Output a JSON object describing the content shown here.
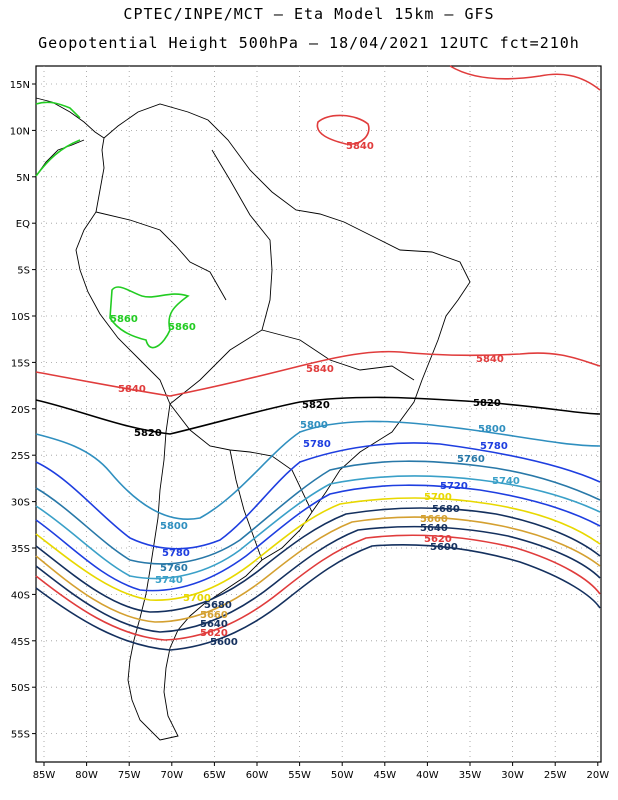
{
  "header": {
    "title_line1": "CPTEC/INPE/MCT –  Eta Model 15km – GFS",
    "title_line2": "Geopotential Height 500hPa – 18/04/2021 12UTC fct=210h"
  },
  "map": {
    "variable": "Geopotential Height 500hPa",
    "lat_labels": [
      "15N",
      "10N",
      "5N",
      "EQ",
      "5S",
      "10S",
      "15S",
      "20S",
      "25S",
      "30S",
      "35S",
      "40S",
      "45S",
      "50S",
      "55S"
    ],
    "lon_labels": [
      "85W",
      "80W",
      "75W",
      "70W",
      "65W",
      "60W",
      "55W",
      "50W",
      "45W",
      "40W",
      "35W",
      "30W",
      "25W",
      "20W"
    ],
    "contour_labels": [
      {
        "text": "5860",
        "color": "#22cc22"
      },
      {
        "text": "5860",
        "color": "#22cc22"
      },
      {
        "text": "5840",
        "color": "#e03c3c"
      },
      {
        "text": "5840",
        "color": "#e03c3c"
      },
      {
        "text": "5840",
        "color": "#e03c3c"
      },
      {
        "text": "5840",
        "color": "#e03c3c"
      },
      {
        "text": "5820",
        "color": "#000000"
      },
      {
        "text": "5820",
        "color": "#000000"
      },
      {
        "text": "5820",
        "color": "#000000"
      },
      {
        "text": "5800",
        "color": "#2f8fbf"
      },
      {
        "text": "5800",
        "color": "#2f8fbf"
      },
      {
        "text": "5800",
        "color": "#2f8fbf"
      },
      {
        "text": "5780",
        "color": "#1e3ee0"
      },
      {
        "text": "5780",
        "color": "#1e3ee0"
      },
      {
        "text": "5780",
        "color": "#1e3ee0"
      },
      {
        "text": "5760",
        "color": "#2878a8"
      },
      {
        "text": "5760",
        "color": "#2878a8"
      },
      {
        "text": "5740",
        "color": "#3aa0c8"
      },
      {
        "text": "5740",
        "color": "#3aa0c8"
      },
      {
        "text": "5720",
        "color": "#1e3ee0"
      },
      {
        "text": "5700",
        "color": "#e8d800"
      },
      {
        "text": "5700",
        "color": "#e8d800"
      },
      {
        "text": "5680",
        "color": "#14305e"
      },
      {
        "text": "5680",
        "color": "#14305e"
      },
      {
        "text": "5660",
        "color": "#d4a030"
      },
      {
        "text": "5660",
        "color": "#d4a030"
      },
      {
        "text": "5640",
        "color": "#14305e"
      },
      {
        "text": "5640",
        "color": "#14305e"
      },
      {
        "text": "5620",
        "color": "#e03c3c"
      },
      {
        "text": "5620",
        "color": "#e03c3c"
      },
      {
        "text": "5600",
        "color": "#14305e"
      },
      {
        "text": "5600",
        "color": "#14305e"
      }
    ],
    "colors": {
      "c5860": "#22cc22",
      "c5840": "#e03c3c",
      "c5820": "#000000",
      "c5800": "#2f8fbf",
      "c5780": "#1e3ee0",
      "c5760": "#2878a8",
      "c5740": "#3aa0c8",
      "c5720": "#1e3ee0",
      "c5700": "#e8d800",
      "c5680": "#14305e",
      "c5660": "#d4a030",
      "c5640": "#14305e",
      "c5620": "#e03c3c",
      "c5600": "#14305e"
    }
  }
}
